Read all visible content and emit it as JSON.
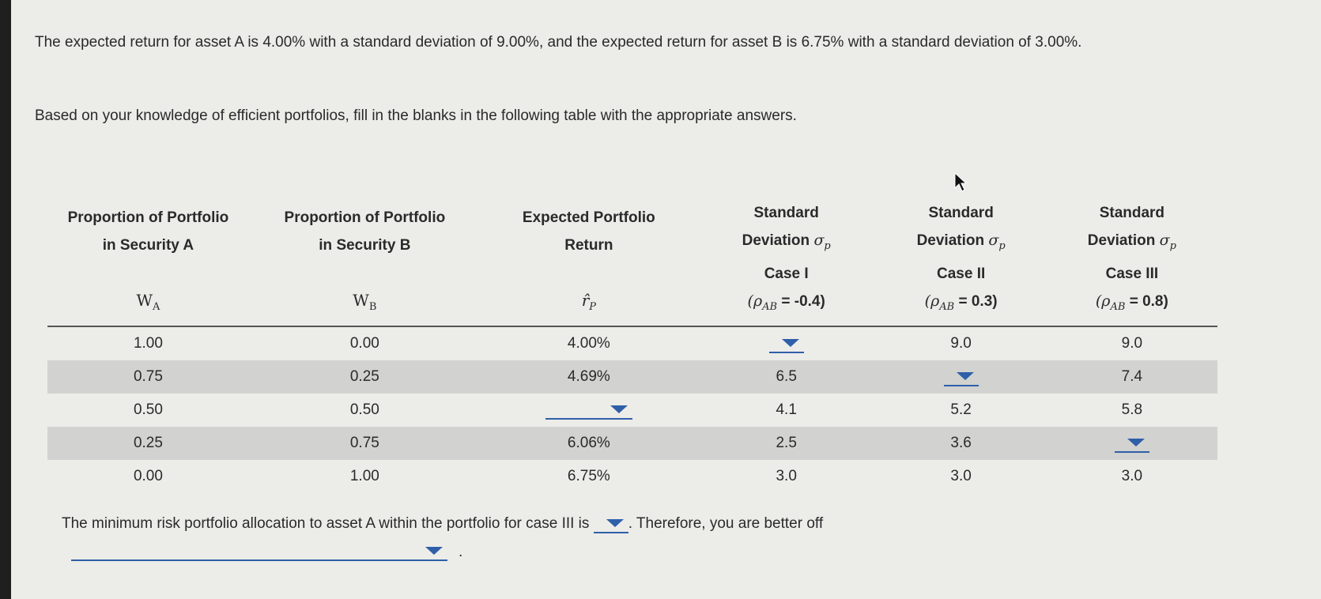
{
  "intro": "The expected return for asset A is 4.00% with a standard deviation of 9.00%, and the expected return for asset B is 6.75% with a standard deviation of 3.00%.",
  "instructions": "Based on your knowledge of efficient portfolios, fill in the blanks in the following table with the appropriate answers.",
  "headers": {
    "col1": {
      "line1": "Proportion of Portfolio",
      "line2": "in Security A",
      "sym": "W",
      "sub": "A"
    },
    "col2": {
      "line1": "Proportion of Portfolio",
      "line2": "in Security B",
      "sym": "W",
      "sub": "B"
    },
    "col3": {
      "line1": "Expected Portfolio",
      "line2": "Return",
      "sym": "r̂",
      "sub": "P"
    },
    "col4": {
      "line1": "Standard",
      "line2": "Deviation",
      "sig": "σ",
      "sigsub": "p",
      "case": "Case I",
      "rho": "(ρ",
      "rhosub": "AB",
      "rhoval": " = -0.4)"
    },
    "col5": {
      "line1": "Standard",
      "line2": "Deviation",
      "sig": "σ",
      "sigsub": "p",
      "case": "Case II",
      "rho": "(ρ",
      "rhosub": "AB",
      "rhoval": " = 0.3)"
    },
    "col6": {
      "line1": "Standard",
      "line2": "Deviation",
      "sig": "σ",
      "sigsub": "p",
      "case": "Case III",
      "rho": "(ρ",
      "rhosub": "AB",
      "rhoval": " = 0.8)"
    }
  },
  "rows": [
    {
      "wa": "1.00",
      "wb": "0.00",
      "ret": "4.00%",
      "s1": "",
      "s2": "9.0",
      "s3": "9.0"
    },
    {
      "wa": "0.75",
      "wb": "0.25",
      "ret": "4.69%",
      "s1": "6.5",
      "s2": "",
      "s3": "7.4"
    },
    {
      "wa": "0.50",
      "wb": "0.50",
      "ret": "",
      "s1": "4.1",
      "s2": "5.2",
      "s3": "5.8"
    },
    {
      "wa": "0.25",
      "wb": "0.75",
      "ret": "6.06%",
      "s1": "2.5",
      "s2": "3.6",
      "s3": ""
    },
    {
      "wa": "0.00",
      "wb": "1.00",
      "ret": "6.75%",
      "s1": "3.0",
      "s2": "3.0",
      "s3": "3.0"
    }
  ],
  "bottom": {
    "text_before": "The minimum risk portfolio allocation to asset A within the portfolio for case III is",
    "text_after": ". Therefore, you are better off",
    "dropdown1_value": "",
    "dropdown2_value": "",
    "end_punct": "."
  },
  "colors": {
    "accent": "#2f5fa8",
    "row_shade": "#d2d2d0"
  }
}
